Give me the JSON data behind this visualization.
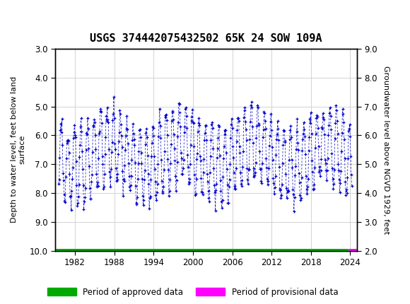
{
  "title": "USGS 374442075432502 65K 24 SOW 109A",
  "ylabel_left": "Depth to water level, feet below land\nsurface",
  "ylabel_right": "Groundwater level above NGVD 1929, feet",
  "ylim_left": [
    3.0,
    10.0
  ],
  "ylim_right": [
    2.0,
    9.0
  ],
  "yticks_left": [
    3.0,
    4.0,
    5.0,
    6.0,
    7.0,
    8.0,
    9.0,
    10.0
  ],
  "yticks_right": [
    2.0,
    3.0,
    4.0,
    5.0,
    6.0,
    7.0,
    8.0,
    9.0
  ],
  "xlim": [
    1979,
    2025
  ],
  "xticks": [
    1982,
    1988,
    1994,
    2000,
    2006,
    2012,
    2018,
    2024
  ],
  "header_color": "#1a6b3c",
  "data_color": "#0000CC",
  "approved_color": "#00AA00",
  "provisional_color": "#FF00FF",
  "legend_approved": "Period of approved data",
  "legend_provisional": "Period of provisional data",
  "approved_x_end": 2023.7,
  "provisional_x_start": 2023.7,
  "fig_width": 5.8,
  "fig_height": 4.3,
  "dpi": 100
}
